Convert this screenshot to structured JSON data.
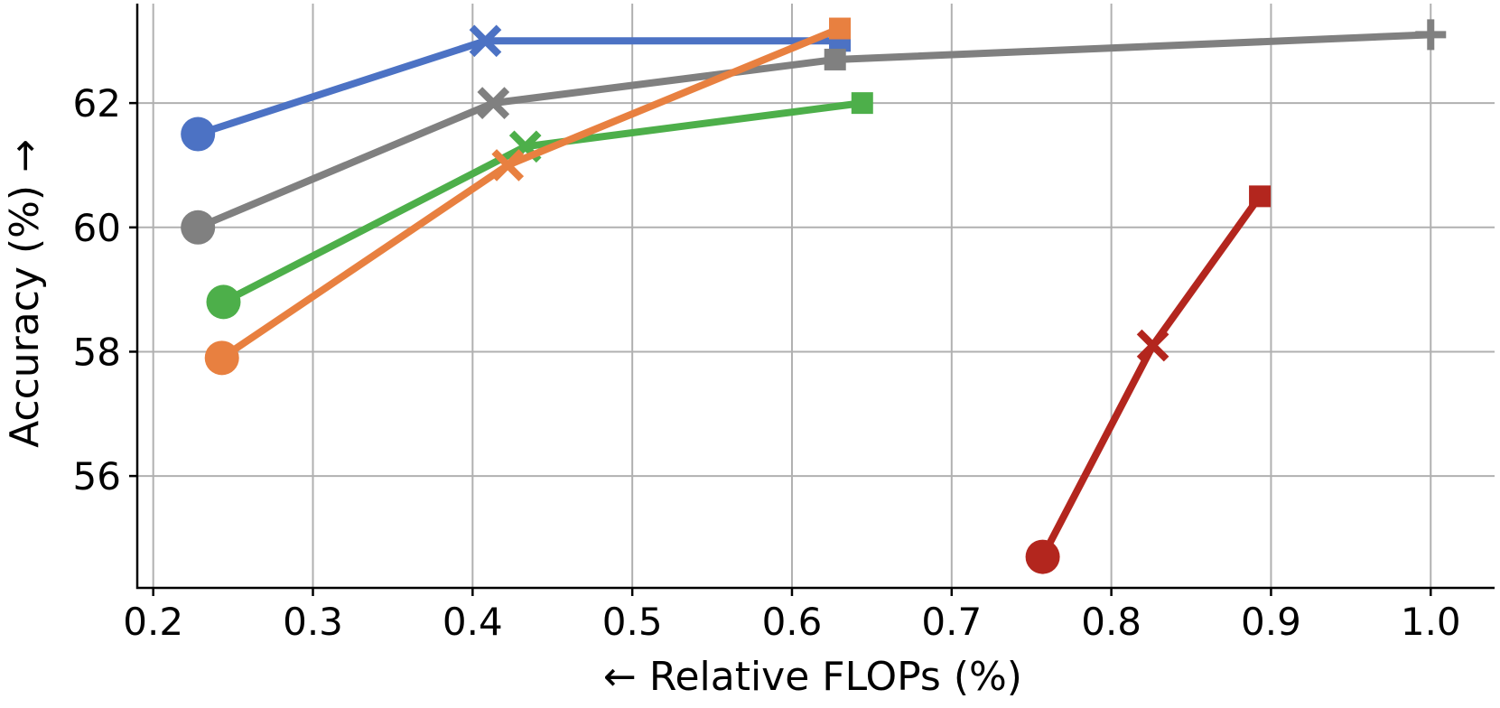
{
  "chart_data": {
    "type": "line",
    "title": "",
    "xlabel": "← Relative FLOPs (%)",
    "ylabel": "Accuracy (%) →",
    "xlim": [
      0.19,
      1.04
    ],
    "ylim": [
      54.2,
      63.6
    ],
    "xticks": [
      0.2,
      0.3,
      0.4,
      0.5,
      0.6,
      0.7,
      0.8,
      0.9,
      1.0
    ],
    "xtick_labels": [
      "0.2",
      "0.3",
      "0.4",
      "0.5",
      "0.6",
      "0.7",
      "0.8",
      "0.9",
      "1.0"
    ],
    "yticks": [
      56,
      58,
      60,
      62
    ],
    "ytick_labels": [
      "56",
      "58",
      "60",
      "62"
    ],
    "grid": true,
    "marker_sequence": [
      "circle",
      "x",
      "square"
    ],
    "series": [
      {
        "name": "blue",
        "color": "#4c72c4",
        "points": [
          {
            "x": 0.228,
            "y": 61.5,
            "marker": "circle"
          },
          {
            "x": 0.408,
            "y": 63.0,
            "marker": "x"
          },
          {
            "x": 0.63,
            "y": 63.0,
            "marker": "square"
          }
        ]
      },
      {
        "name": "gray",
        "color": "#808080",
        "points": [
          {
            "x": 0.228,
            "y": 60.0,
            "marker": "circle"
          },
          {
            "x": 0.413,
            "y": 62.0,
            "marker": "x"
          },
          {
            "x": 0.627,
            "y": 62.7,
            "marker": "square"
          },
          {
            "x": 1.0,
            "y": 63.1,
            "marker": "plus"
          }
        ]
      },
      {
        "name": "green",
        "color": "#4daf4a",
        "points": [
          {
            "x": 0.244,
            "y": 58.8,
            "marker": "circle"
          },
          {
            "x": 0.433,
            "y": 61.3,
            "marker": "x"
          },
          {
            "x": 0.644,
            "y": 62.0,
            "marker": "square"
          }
        ]
      },
      {
        "name": "orange",
        "color": "#e88040",
        "points": [
          {
            "x": 0.243,
            "y": 57.9,
            "marker": "circle"
          },
          {
            "x": 0.422,
            "y": 61.0,
            "marker": "x"
          },
          {
            "x": 0.63,
            "y": 63.2,
            "marker": "square"
          }
        ]
      },
      {
        "name": "red",
        "color": "#b3261e",
        "points": [
          {
            "x": 0.757,
            "y": 54.7,
            "marker": "circle"
          },
          {
            "x": 0.826,
            "y": 58.1,
            "marker": "x"
          },
          {
            "x": 0.893,
            "y": 60.5,
            "marker": "square"
          }
        ]
      }
    ]
  }
}
